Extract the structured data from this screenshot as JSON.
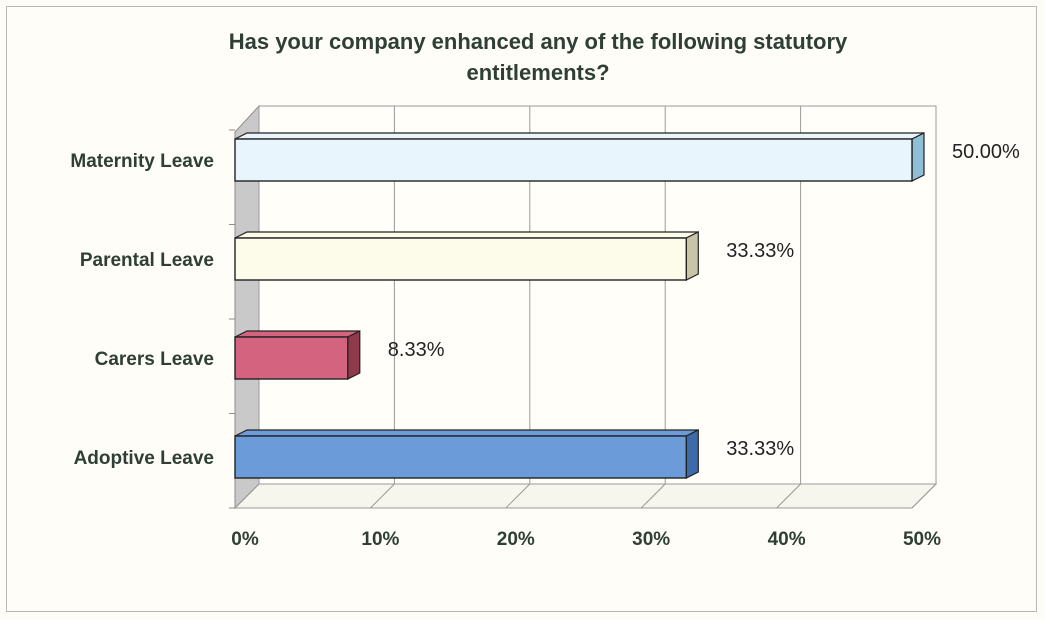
{
  "chart_data": {
    "type": "bar",
    "orientation": "horizontal",
    "title_lines": [
      "Has your company enhanced any of the following statutory",
      "entitlements?"
    ],
    "categories": [
      "Maternity Leave",
      "Parental Leave",
      "Carers Leave",
      "Adoptive Leave"
    ],
    "values": [
      50.0,
      33.33,
      8.33,
      33.33
    ],
    "data_labels": [
      "50.00%",
      "33.33%",
      "8.33%",
      "33.33%"
    ],
    "bar_colors": [
      "#e8f5fd",
      "#fdfbea",
      "#d4637f",
      "#6b9bd8"
    ],
    "bar_side_colors": [
      "#8fbfd6",
      "#c8c4a8",
      "#8e3a4c",
      "#3d6aa8"
    ],
    "x_ticks": [
      "0%",
      "10%",
      "20%",
      "30%",
      "40%",
      "50%"
    ],
    "xlim": [
      0,
      50
    ],
    "xlabel": "",
    "ylabel": "",
    "grid": true,
    "legend": "none",
    "style": "3d"
  }
}
